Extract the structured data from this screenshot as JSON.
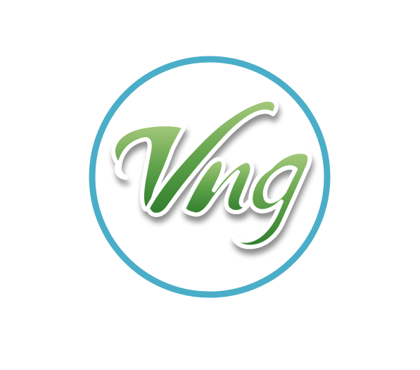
{
  "logo": {
    "monogram": "Vng",
    "colors": {
      "ring": "#4aaec8",
      "background": "#ffffff",
      "letter_light": "#a6c97c",
      "letter_mid": "#5fa24a",
      "letter_dark": "#2f7d2c",
      "letter_outline": "#ffffff",
      "shadow": "#000000"
    }
  }
}
